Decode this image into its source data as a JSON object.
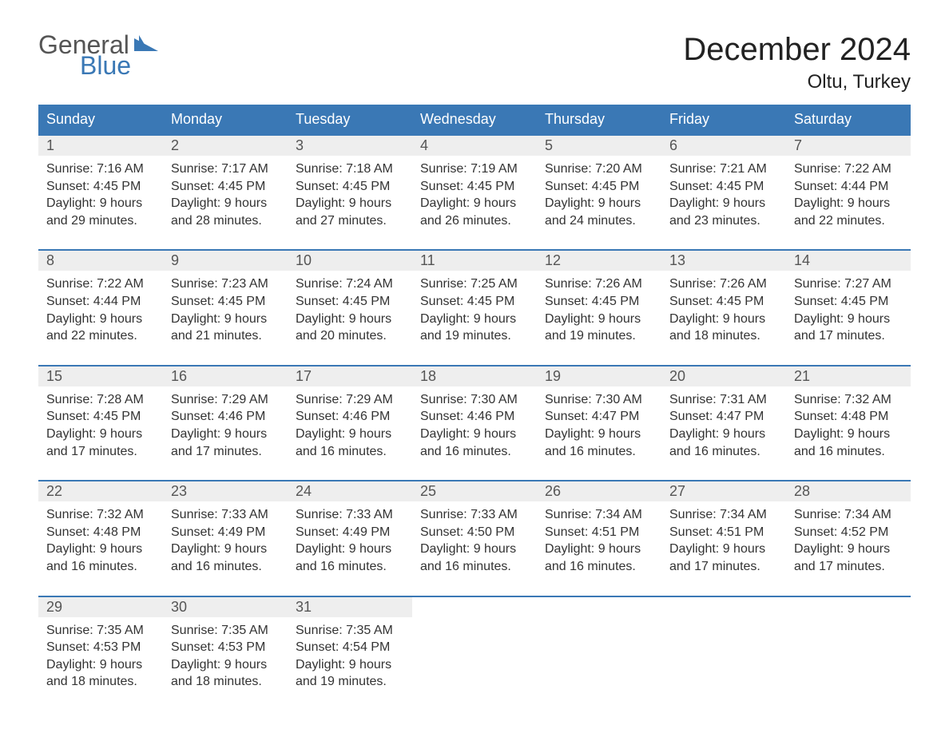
{
  "logo": {
    "part1": "General",
    "part2": "Blue"
  },
  "title": "December 2024",
  "location": "Oltu, Turkey",
  "colors": {
    "header_bg": "#3a78b5",
    "header_text": "#ffffff",
    "daynum_bg": "#eeeeee",
    "border": "#3a78b5",
    "body_text": "#333333",
    "logo_gray": "#555555",
    "logo_blue": "#3a78b5",
    "page_bg": "#ffffff"
  },
  "typography": {
    "title_fontsize": 40,
    "location_fontsize": 24,
    "weekday_fontsize": 18,
    "daynum_fontsize": 18,
    "cell_fontsize": 16
  },
  "weekdays": [
    "Sunday",
    "Monday",
    "Tuesday",
    "Wednesday",
    "Thursday",
    "Friday",
    "Saturday"
  ],
  "weeks": [
    [
      {
        "n": "1",
        "sr": "Sunrise: 7:16 AM",
        "ss": "Sunset: 4:45 PM",
        "d1": "Daylight: 9 hours",
        "d2": "and 29 minutes."
      },
      {
        "n": "2",
        "sr": "Sunrise: 7:17 AM",
        "ss": "Sunset: 4:45 PM",
        "d1": "Daylight: 9 hours",
        "d2": "and 28 minutes."
      },
      {
        "n": "3",
        "sr": "Sunrise: 7:18 AM",
        "ss": "Sunset: 4:45 PM",
        "d1": "Daylight: 9 hours",
        "d2": "and 27 minutes."
      },
      {
        "n": "4",
        "sr": "Sunrise: 7:19 AM",
        "ss": "Sunset: 4:45 PM",
        "d1": "Daylight: 9 hours",
        "d2": "and 26 minutes."
      },
      {
        "n": "5",
        "sr": "Sunrise: 7:20 AM",
        "ss": "Sunset: 4:45 PM",
        "d1": "Daylight: 9 hours",
        "d2": "and 24 minutes."
      },
      {
        "n": "6",
        "sr": "Sunrise: 7:21 AM",
        "ss": "Sunset: 4:45 PM",
        "d1": "Daylight: 9 hours",
        "d2": "and 23 minutes."
      },
      {
        "n": "7",
        "sr": "Sunrise: 7:22 AM",
        "ss": "Sunset: 4:44 PM",
        "d1": "Daylight: 9 hours",
        "d2": "and 22 minutes."
      }
    ],
    [
      {
        "n": "8",
        "sr": "Sunrise: 7:22 AM",
        "ss": "Sunset: 4:44 PM",
        "d1": "Daylight: 9 hours",
        "d2": "and 22 minutes."
      },
      {
        "n": "9",
        "sr": "Sunrise: 7:23 AM",
        "ss": "Sunset: 4:45 PM",
        "d1": "Daylight: 9 hours",
        "d2": "and 21 minutes."
      },
      {
        "n": "10",
        "sr": "Sunrise: 7:24 AM",
        "ss": "Sunset: 4:45 PM",
        "d1": "Daylight: 9 hours",
        "d2": "and 20 minutes."
      },
      {
        "n": "11",
        "sr": "Sunrise: 7:25 AM",
        "ss": "Sunset: 4:45 PM",
        "d1": "Daylight: 9 hours",
        "d2": "and 19 minutes."
      },
      {
        "n": "12",
        "sr": "Sunrise: 7:26 AM",
        "ss": "Sunset: 4:45 PM",
        "d1": "Daylight: 9 hours",
        "d2": "and 19 minutes."
      },
      {
        "n": "13",
        "sr": "Sunrise: 7:26 AM",
        "ss": "Sunset: 4:45 PM",
        "d1": "Daylight: 9 hours",
        "d2": "and 18 minutes."
      },
      {
        "n": "14",
        "sr": "Sunrise: 7:27 AM",
        "ss": "Sunset: 4:45 PM",
        "d1": "Daylight: 9 hours",
        "d2": "and 17 minutes."
      }
    ],
    [
      {
        "n": "15",
        "sr": "Sunrise: 7:28 AM",
        "ss": "Sunset: 4:45 PM",
        "d1": "Daylight: 9 hours",
        "d2": "and 17 minutes."
      },
      {
        "n": "16",
        "sr": "Sunrise: 7:29 AM",
        "ss": "Sunset: 4:46 PM",
        "d1": "Daylight: 9 hours",
        "d2": "and 17 minutes."
      },
      {
        "n": "17",
        "sr": "Sunrise: 7:29 AM",
        "ss": "Sunset: 4:46 PM",
        "d1": "Daylight: 9 hours",
        "d2": "and 16 minutes."
      },
      {
        "n": "18",
        "sr": "Sunrise: 7:30 AM",
        "ss": "Sunset: 4:46 PM",
        "d1": "Daylight: 9 hours",
        "d2": "and 16 minutes."
      },
      {
        "n": "19",
        "sr": "Sunrise: 7:30 AM",
        "ss": "Sunset: 4:47 PM",
        "d1": "Daylight: 9 hours",
        "d2": "and 16 minutes."
      },
      {
        "n": "20",
        "sr": "Sunrise: 7:31 AM",
        "ss": "Sunset: 4:47 PM",
        "d1": "Daylight: 9 hours",
        "d2": "and 16 minutes."
      },
      {
        "n": "21",
        "sr": "Sunrise: 7:32 AM",
        "ss": "Sunset: 4:48 PM",
        "d1": "Daylight: 9 hours",
        "d2": "and 16 minutes."
      }
    ],
    [
      {
        "n": "22",
        "sr": "Sunrise: 7:32 AM",
        "ss": "Sunset: 4:48 PM",
        "d1": "Daylight: 9 hours",
        "d2": "and 16 minutes."
      },
      {
        "n": "23",
        "sr": "Sunrise: 7:33 AM",
        "ss": "Sunset: 4:49 PM",
        "d1": "Daylight: 9 hours",
        "d2": "and 16 minutes."
      },
      {
        "n": "24",
        "sr": "Sunrise: 7:33 AM",
        "ss": "Sunset: 4:49 PM",
        "d1": "Daylight: 9 hours",
        "d2": "and 16 minutes."
      },
      {
        "n": "25",
        "sr": "Sunrise: 7:33 AM",
        "ss": "Sunset: 4:50 PM",
        "d1": "Daylight: 9 hours",
        "d2": "and 16 minutes."
      },
      {
        "n": "26",
        "sr": "Sunrise: 7:34 AM",
        "ss": "Sunset: 4:51 PM",
        "d1": "Daylight: 9 hours",
        "d2": "and 16 minutes."
      },
      {
        "n": "27",
        "sr": "Sunrise: 7:34 AM",
        "ss": "Sunset: 4:51 PM",
        "d1": "Daylight: 9 hours",
        "d2": "and 17 minutes."
      },
      {
        "n": "28",
        "sr": "Sunrise: 7:34 AM",
        "ss": "Sunset: 4:52 PM",
        "d1": "Daylight: 9 hours",
        "d2": "and 17 minutes."
      }
    ],
    [
      {
        "n": "29",
        "sr": "Sunrise: 7:35 AM",
        "ss": "Sunset: 4:53 PM",
        "d1": "Daylight: 9 hours",
        "d2": "and 18 minutes."
      },
      {
        "n": "30",
        "sr": "Sunrise: 7:35 AM",
        "ss": "Sunset: 4:53 PM",
        "d1": "Daylight: 9 hours",
        "d2": "and 18 minutes."
      },
      {
        "n": "31",
        "sr": "Sunrise: 7:35 AM",
        "ss": "Sunset: 4:54 PM",
        "d1": "Daylight: 9 hours",
        "d2": "and 19 minutes."
      },
      null,
      null,
      null,
      null
    ]
  ]
}
